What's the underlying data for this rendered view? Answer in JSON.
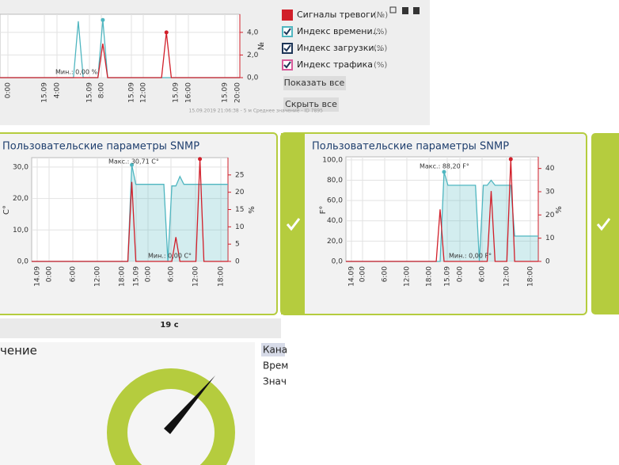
{
  "top_panel": {
    "chart": {
      "type": "area",
      "xticks": [
        "0:00",
        "15.09",
        "4:00",
        "15.09",
        "8:00",
        "15.09",
        "12:00",
        "15.09",
        "16:00",
        "15.09",
        "20:00"
      ],
      "ylim": [
        0,
        100
      ],
      "y2label": "№",
      "y2lim": [
        0,
        5.6
      ],
      "y2ticks": [
        {
          "value": 0,
          "label": "0,0"
        },
        {
          "value": 2,
          "label": "2,0"
        },
        {
          "value": 4,
          "label": "4,0"
        }
      ],
      "series": [
        {
          "color": "#4fb6c0",
          "fill": false,
          "values": [
            0,
            0,
            0,
            0,
            0,
            0,
            0,
            0,
            0,
            0,
            0,
            0,
            0,
            0,
            0,
            0,
            89,
            0,
            0,
            0,
            0,
            91,
            0,
            0,
            0,
            0,
            0,
            0,
            0,
            0,
            0,
            0,
            0,
            0,
            0,
            0,
            0,
            0,
            0,
            0,
            0,
            0,
            0,
            0,
            0,
            0,
            0,
            0,
            0,
            0
          ]
        },
        {
          "color": "#d11f2a",
          "axis": "y2",
          "fill": false,
          "values": [
            0,
            0,
            0,
            0,
            0,
            0,
            0,
            0,
            0,
            0,
            0,
            0,
            0,
            0,
            0,
            0,
            0,
            0,
            0,
            0,
            0,
            3.0,
            0,
            0,
            0,
            0,
            0,
            0,
            0,
            0,
            0,
            0,
            0,
            0,
            4.0,
            0,
            0,
            0,
            0,
            0,
            0,
            0,
            0,
            0,
            0,
            0,
            0,
            0,
            0,
            0
          ]
        }
      ],
      "annotations": [
        "Мин.: 0,00 %"
      ]
    },
    "legend": [
      {
        "name": "Сигналы тревоги",
        "unit": "(№)",
        "color": "#d11f2a"
      },
      {
        "name": "Индекс времени...",
        "unit": "(%)",
        "color": "#4fb6c0"
      },
      {
        "name": "Индекс загрузки...",
        "unit": "(%)",
        "color": "#1d3557"
      },
      {
        "name": "Индекс трафика",
        "unit": "(%)",
        "color": "#d85a9a"
      }
    ],
    "buttons": [
      "Показать все",
      "Скрыть все"
    ],
    "footer": "15.09.2019 21:06:38 - 5 м Среднее значение - ID 7895"
  },
  "panels": [
    {
      "title": "Пользовательские параметры SNMP",
      "chart": {
        "type": "area",
        "xticks": [
          "14.09",
          "0:00",
          "6:00",
          "12:00",
          "18:00",
          "15.09",
          "0:00",
          "6:00",
          "12:00",
          "18:00"
        ],
        "ylabel": "C°",
        "ylim": [
          0,
          33
        ],
        "yticks": [
          {
            "value": 0,
            "label": "0,0"
          },
          {
            "value": 10,
            "label": "10,0"
          },
          {
            "value": 20,
            "label": "20,0"
          },
          {
            "value": 30,
            "label": "30,0"
          }
        ],
        "y2label": "%",
        "y2lim": [
          0,
          30
        ],
        "y2ticks": [
          0,
          5,
          10,
          15,
          20,
          25
        ],
        "series": [
          {
            "color": "#4fb6c0",
            "fill": true,
            "values": [
              0,
              0,
              0,
              0,
              0,
              0,
              0,
              0,
              0,
              0,
              0,
              0,
              0,
              0,
              0,
              0,
              0,
              0,
              0,
              0,
              0,
              0,
              0,
              0,
              0,
              30.71,
              24.5,
              24.5,
              24.5,
              24.5,
              24.5,
              24.5,
              24.5,
              24.5,
              0,
              24,
              24,
              27,
              24.5,
              24.5,
              24.5,
              24.5,
              24.5,
              24.5,
              24.5,
              24.5,
              24.5,
              24.5,
              24.5,
              24.5
            ]
          },
          {
            "color": "#d11f2a",
            "axis": "y2",
            "fill": false,
            "values": [
              0,
              0,
              0,
              0,
              0,
              0,
              0,
              0,
              0,
              0,
              0,
              0,
              0,
              0,
              0,
              0,
              0,
              0,
              0,
              0,
              0,
              0,
              0,
              0,
              0,
              23,
              0,
              0,
              0,
              0,
              0,
              0,
              0,
              0,
              0,
              0,
              7,
              0,
              0,
              0,
              0,
              0,
              29.6,
              0,
              0,
              0,
              0,
              0,
              0,
              0
            ]
          }
        ],
        "annotations": [
          "Макс.: 30,71 C°",
          "Мин.: 0,00 C°"
        ]
      }
    },
    {
      "title": "Пользовательские параметры SNMP",
      "chart": {
        "type": "area",
        "xticks": [
          "14.09",
          "0:00",
          "6:00",
          "12:00",
          "18:00",
          "15.09",
          "0:00",
          "6:00",
          "12:00",
          "18:00"
        ],
        "ylabel": "F°",
        "ylim": [
          0,
          103
        ],
        "yticks": [
          {
            "value": 0,
            "label": "0,0"
          },
          {
            "value": 20,
            "label": "20,0"
          },
          {
            "value": 40,
            "label": "40,0"
          },
          {
            "value": 60,
            "label": "60,0"
          },
          {
            "value": 80,
            "label": "80,0"
          },
          {
            "value": 100,
            "label": "100,0"
          }
        ],
        "y2label": "%",
        "y2lim": [
          0,
          45
        ],
        "y2ticks": [
          0,
          10,
          20,
          30,
          40
        ],
        "series": [
          {
            "color": "#4fb6c0",
            "fill": true,
            "values": [
              0,
              0,
              0,
              0,
              0,
              0,
              0,
              0,
              0,
              0,
              0,
              0,
              0,
              0,
              0,
              0,
              0,
              0,
              0,
              0,
              0,
              0,
              0,
              0,
              0,
              88.2,
              75,
              75,
              75,
              75,
              75,
              75,
              75,
              75,
              0,
              75,
              75,
              80,
              75,
              75,
              75,
              75,
              75,
              25,
              25,
              25,
              25,
              25,
              25,
              25
            ]
          },
          {
            "color": "#d11f2a",
            "axis": "y2",
            "fill": false,
            "values": [
              0,
              0,
              0,
              0,
              0,
              0,
              0,
              0,
              0,
              0,
              0,
              0,
              0,
              0,
              0,
              0,
              0,
              0,
              0,
              0,
              0,
              0,
              0,
              0,
              22.4,
              0,
              0,
              0,
              0,
              0,
              0,
              0,
              0,
              0,
              0,
              0,
              0,
              30.3,
              0,
              0,
              0,
              0,
              44,
              0,
              0,
              0,
              0,
              0,
              0,
              0
            ]
          }
        ],
        "annotations": [
          "Макс.: 88,20 F°",
          "Мин.: 0,00 F°"
        ]
      }
    }
  ],
  "bottom": {
    "timer": "19 с",
    "title": "чение",
    "list": [
      "Кана",
      "Врем",
      "Знач"
    ]
  }
}
